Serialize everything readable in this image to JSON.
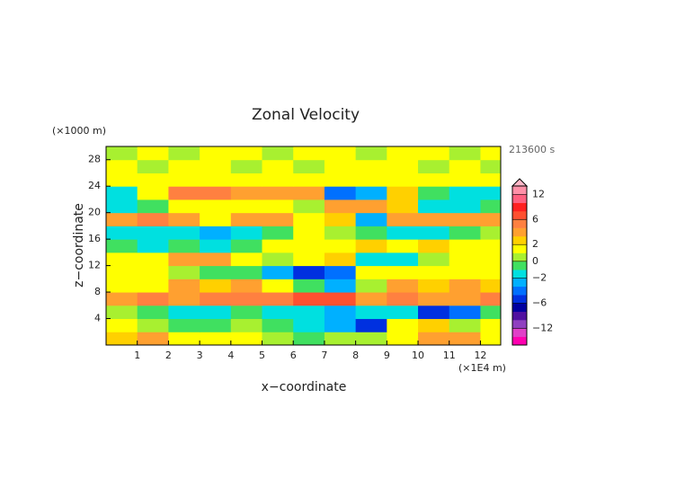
{
  "chart_data": {
    "type": "heatmap",
    "title": "Zonal Velocity",
    "x_label": "x−coordinate",
    "y_label": "z−coordinate",
    "x_unit": "(×1E4 m)",
    "y_unit": "(×1000 m)",
    "time_label": "213600 s",
    "xlim": [
      0,
      12.65
    ],
    "ylim": [
      0,
      30
    ],
    "xticks": [
      1,
      2,
      3,
      4,
      5,
      6,
      7,
      8,
      9,
      10,
      11,
      12
    ],
    "yticks": [
      4,
      8,
      12,
      16,
      20,
      24,
      28
    ],
    "x": [
      0.5,
      1.5,
      2.5,
      3.5,
      4.5,
      5.5,
      6.5,
      7.5,
      8.5,
      9.5,
      10.5,
      11.5,
      12.5
    ],
    "z": [
      1,
      3,
      5,
      7,
      9,
      11,
      13,
      15,
      17,
      19,
      21,
      23,
      25,
      27,
      29
    ],
    "values": [
      [
        2,
        3,
        1,
        1,
        1,
        0.5,
        -1,
        0.5,
        0.5,
        1,
        3,
        3,
        1.5
      ],
      [
        1,
        0.5,
        -1,
        -0.5,
        0.5,
        -1,
        -2,
        -3,
        -5,
        1,
        2,
        0.5,
        1
      ],
      [
        0.5,
        -1,
        -2,
        -1.5,
        -1,
        -1.5,
        -2,
        -3,
        -2,
        -2,
        -5,
        -4,
        -1
      ],
      [
        3,
        4,
        3,
        4,
        4,
        5,
        7,
        6,
        3,
        4,
        3,
        3,
        4
      ],
      [
        1.5,
        1,
        3,
        2,
        3,
        1,
        -1,
        -3,
        0.5,
        3,
        2,
        3,
        2
      ],
      [
        1,
        1.5,
        0.5,
        -1,
        -1,
        -3,
        -6,
        -4,
        1,
        1,
        1,
        1,
        1.5
      ],
      [
        1.5,
        1,
        3,
        3,
        1,
        0.5,
        1,
        2,
        -2,
        -2,
        0.5,
        1,
        1.5
      ],
      [
        -1,
        -2,
        -1,
        -2,
        -0.5,
        1,
        1.5,
        1,
        2,
        1.5,
        2,
        1,
        1
      ],
      [
        -1.5,
        -2,
        -2,
        -3,
        -2,
        -1,
        1.5,
        0.5,
        -1,
        -2,
        -1.5,
        -1,
        0.5
      ],
      [
        3,
        4,
        3,
        1.5,
        3,
        3,
        1.5,
        2,
        -3,
        3,
        3,
        3,
        3
      ],
      [
        -1.5,
        -1,
        1.5,
        1,
        1.5,
        1.5,
        0.5,
        3,
        3,
        2,
        -2,
        -1.5,
        -1
      ],
      [
        -2,
        1.5,
        4,
        4,
        3,
        3,
        3,
        -4,
        -3,
        2,
        -1,
        -2,
        -2
      ],
      [
        1.5,
        1.5,
        1.5,
        1,
        1.5,
        1,
        1.5,
        1.5,
        1,
        1.5,
        1.5,
        1,
        1.5
      ],
      [
        1.5,
        0.5,
        1,
        1.5,
        0.5,
        1,
        0.5,
        1,
        1.5,
        1,
        0.5,
        1,
        0.5
      ],
      [
        0.5,
        1,
        0.5,
        1,
        1.5,
        0.5,
        1,
        1,
        0.5,
        1,
        1.5,
        0.5,
        1
      ]
    ],
    "colorbar": {
      "levels": [
        -14,
        -12,
        -10,
        -8,
        -6,
        -4,
        -3,
        -2,
        -1,
        0,
        1,
        2,
        3,
        4,
        6,
        8,
        10,
        12,
        14
      ],
      "colors": [
        "#ff00b0",
        "#e040c8",
        "#9040c0",
        "#5010a0",
        "#0000a0",
        "#0030e0",
        "#0070ff",
        "#00b0ff",
        "#00e0e0",
        "#40e060",
        "#a8f030",
        "#ffff00",
        "#ffd000",
        "#ffa030",
        "#ff8040",
        "#ff5030",
        "#ff2020",
        "#ff6080",
        "#ff90a8",
        "#ffb8c8"
      ],
      "ticks": [
        12,
        6,
        2,
        0,
        {
          "value": -2,
          "label": "−2"
        },
        {
          "value": -6,
          "label": "−6"
        },
        {
          "value": -12,
          "label": "−12"
        }
      ]
    }
  }
}
